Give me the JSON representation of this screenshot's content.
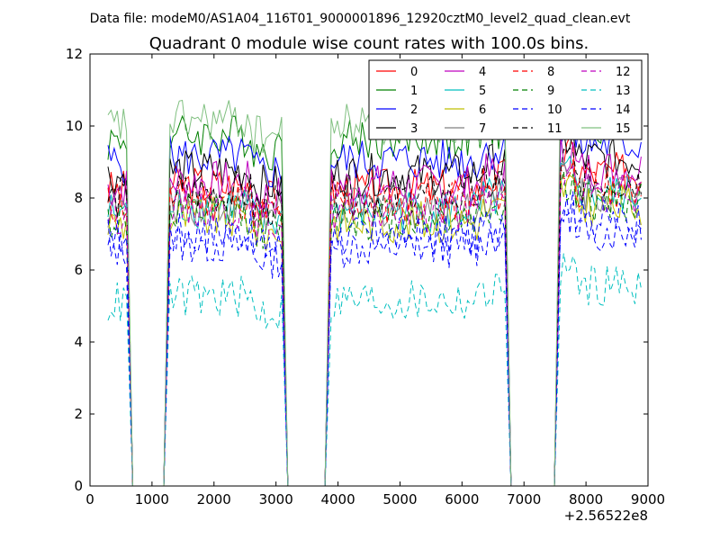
{
  "chart_data": {
    "type": "line",
    "suptitle": "Data file: modeM0/AS1A04_116T01_9000001896_12920cztM0_level2_quad_clean.evt",
    "title": "Quadrant 0 module wise count rates with 100.0s bins.",
    "xlabel": "",
    "ylabel": "",
    "x_offset_label": "+2.56522e8",
    "xlim": [
      0,
      9000
    ],
    "ylim": [
      0,
      12
    ],
    "xticks": [
      0,
      1000,
      2000,
      3000,
      4000,
      5000,
      6000,
      7000,
      8000,
      9000
    ],
    "yticks": [
      0,
      2,
      4,
      6,
      8,
      10,
      12
    ],
    "grid": false,
    "legend_position": "top-right",
    "legend_columns": 4,
    "series": [
      {
        "name": "0",
        "color": "#ff0000",
        "dash": "solid"
      },
      {
        "name": "1",
        "color": "#008000",
        "dash": "solid"
      },
      {
        "name": "2",
        "color": "#0000ff",
        "dash": "solid"
      },
      {
        "name": "3",
        "color": "#000000",
        "dash": "solid"
      },
      {
        "name": "4",
        "color": "#bf00bf",
        "dash": "solid"
      },
      {
        "name": "5",
        "color": "#00bfbf",
        "dash": "solid"
      },
      {
        "name": "6",
        "color": "#bfbf00",
        "dash": "solid"
      },
      {
        "name": "7",
        "color": "#808080",
        "dash": "solid"
      },
      {
        "name": "8",
        "color": "#ff0000",
        "dash": "dashed"
      },
      {
        "name": "9",
        "color": "#008000",
        "dash": "dashed"
      },
      {
        "name": "10",
        "color": "#0000ff",
        "dash": "dashed"
      },
      {
        "name": "11",
        "color": "#000000",
        "dash": "dashed"
      },
      {
        "name": "12",
        "color": "#bf00bf",
        "dash": "dashed"
      },
      {
        "name": "13",
        "color": "#00bfbf",
        "dash": "dashed"
      },
      {
        "name": "14",
        "color": "#0000ff",
        "dash": "dashed"
      },
      {
        "name": "15",
        "color": "#80c080",
        "dash": "solid"
      }
    ],
    "segments": [
      {
        "x_start": 290,
        "x_end": 590,
        "gap_after": [
          590,
          1290
        ]
      },
      {
        "x_start": 1290,
        "x_end": 3090,
        "gap_after": [
          3090,
          3890
        ]
      },
      {
        "x_start": 3890,
        "x_end": 6690,
        "gap_after": [
          6690,
          7590
        ]
      },
      {
        "x_start": 7590,
        "x_end": 8890,
        "gap_after": null
      }
    ],
    "approx_levels": {
      "0": 8.2,
      "1": 9.6,
      "2": 9.0,
      "3": 8.6,
      "4": 8.3,
      "5": 7.6,
      "6": 7.3,
      "7": 7.7,
      "8": 7.8,
      "9": 7.4,
      "10": 6.6,
      "11": 8.0,
      "12": 7.6,
      "13": 5.1,
      "14": 6.9,
      "15": 10.0
    }
  }
}
